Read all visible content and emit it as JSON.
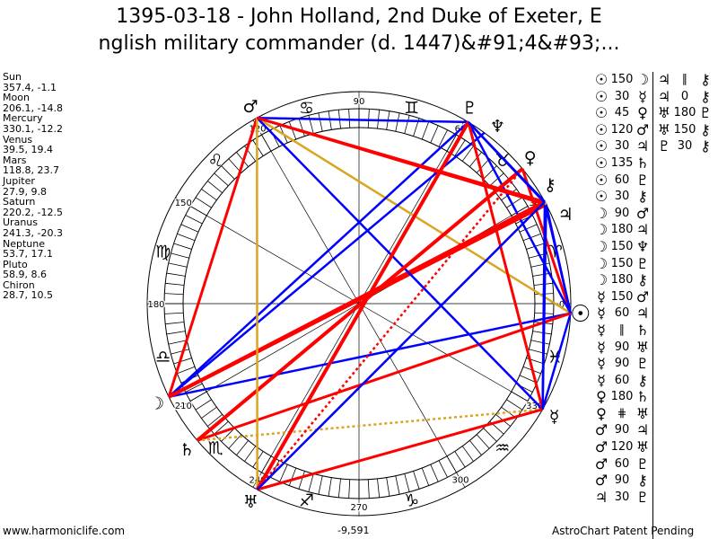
{
  "title": {
    "line1": "1395-03-18 - John Holland, 2nd Duke of Exeter, E",
    "line2": "nglish military commander (d. 1447)&#91;4&#93;..."
  },
  "positions": [
    {
      "name": "Sun",
      "value": "357.4, -1.1",
      "lon": 357.4
    },
    {
      "name": "Moon",
      "value": "206.1, -14.8",
      "lon": 206.1
    },
    {
      "name": "Mercury",
      "value": "330.1, -12.2",
      "lon": 330.1
    },
    {
      "name": "Venus",
      "value": "39.5, 19.4",
      "lon": 39.5
    },
    {
      "name": "Mars",
      "value": "118.8, 23.7",
      "lon": 118.8
    },
    {
      "name": "Jupiter",
      "value": "27.9, 9.8",
      "lon": 27.9
    },
    {
      "name": "Saturn",
      "value": "220.2, -12.5",
      "lon": 220.2
    },
    {
      "name": "Uranus",
      "value": "241.3, -20.3",
      "lon": 241.3
    },
    {
      "name": "Neptune",
      "value": "53.7, 17.1",
      "lon": 53.7
    },
    {
      "name": "Pluto",
      "value": "58.9, 8.6",
      "lon": 58.9
    },
    {
      "name": "Chiron",
      "value": "28.7, 10.5",
      "lon": 28.7
    }
  ],
  "glyphs": {
    "Sun": "☉",
    "Moon": "☽",
    "Mercury": "☿",
    "Venus": "♀",
    "Mars": "♂",
    "Jupiter": "♃",
    "Saturn": "♄",
    "Uranus": "♅",
    "Neptune": "♆",
    "Pluto": "♇",
    "Chiron": "⚷"
  },
  "signs": [
    "♈",
    "♉",
    "♊",
    "♋",
    "♌",
    "♍",
    "♎",
    "♏",
    "♐",
    "♑",
    "♒",
    "♓"
  ],
  "degree_labels": [
    "0",
    "30",
    "60",
    "90",
    "120",
    "150",
    "180",
    "210",
    "240",
    "270",
    "300",
    "330"
  ],
  "bottom_value": "-9,591",
  "colors": {
    "hard": "#ff0000",
    "soft": "#0000ff",
    "trine": "#daa520"
  },
  "aspects": [
    {
      "a": "Sun",
      "asp": "150",
      "b": "Moon"
    },
    {
      "a": "Sun",
      "asp": "30",
      "b": "Mercury"
    },
    {
      "a": "Sun",
      "asp": "45",
      "b": "Venus"
    },
    {
      "a": "Sun",
      "asp": "120",
      "b": "Mars"
    },
    {
      "a": "Sun",
      "asp": "30",
      "b": "Jupiter"
    },
    {
      "a": "Sun",
      "asp": "135",
      "b": "Saturn"
    },
    {
      "a": "Sun",
      "asp": "60",
      "b": "Pluto"
    },
    {
      "a": "Sun",
      "asp": "30",
      "b": "Chiron"
    },
    {
      "a": "Moon",
      "asp": "90",
      "b": "Mars"
    },
    {
      "a": "Moon",
      "asp": "180",
      "b": "Jupiter"
    },
    {
      "a": "Moon",
      "asp": "150",
      "b": "Neptune"
    },
    {
      "a": "Moon",
      "asp": "150",
      "b": "Pluto"
    },
    {
      "a": "Moon",
      "asp": "180",
      "b": "Chiron"
    },
    {
      "a": "Mercury",
      "asp": "150",
      "b": "Mars"
    },
    {
      "a": "Mercury",
      "asp": "60",
      "b": "Jupiter"
    },
    {
      "a": "Mercury",
      "asp": "∥",
      "b": "Saturn"
    },
    {
      "a": "Mercury",
      "asp": "90",
      "b": "Uranus"
    },
    {
      "a": "Mercury",
      "asp": "90",
      "b": "Pluto"
    },
    {
      "a": "Mercury",
      "asp": "60",
      "b": "Chiron"
    },
    {
      "a": "Venus",
      "asp": "180",
      "b": "Saturn"
    },
    {
      "a": "Venus",
      "asp": "⋕",
      "b": "Uranus"
    },
    {
      "a": "Mars",
      "asp": "90",
      "b": "Jupiter"
    },
    {
      "a": "Mars",
      "asp": "120",
      "b": "Uranus"
    },
    {
      "a": "Mars",
      "asp": "60",
      "b": "Pluto"
    },
    {
      "a": "Mars",
      "asp": "90",
      "b": "Chiron"
    },
    {
      "a": "Jupiter",
      "asp": "30",
      "b": "Pluto"
    },
    {
      "a": "Jupiter",
      "asp": "∥",
      "b": "Chiron"
    },
    {
      "a": "Jupiter",
      "asp": "0",
      "b": "Chiron"
    },
    {
      "a": "Uranus",
      "asp": "180",
      "b": "Pluto"
    },
    {
      "a": "Uranus",
      "asp": "150",
      "b": "Chiron"
    },
    {
      "a": "Pluto",
      "asp": "30",
      "b": "Chiron"
    }
  ],
  "footer": {
    "left": "www.harmoniclife.com",
    "right": "AstroChart Patent Pending"
  }
}
